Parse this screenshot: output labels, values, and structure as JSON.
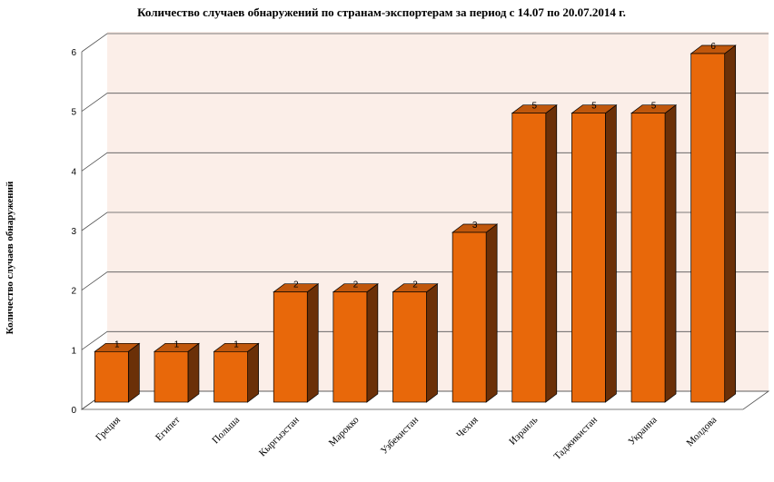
{
  "chart_data": {
    "type": "bar",
    "title": "Количество случаев обнаружений по странам-экспортерам за период с 14.07 по 20.07.2014 г.",
    "xlabel": "",
    "ylabel": "Количество случаев обнаружений",
    "categories": [
      "Греция",
      "Египет",
      "Польша",
      "Кыргызстан",
      "Марокко",
      "Узбекистан",
      "Чехия",
      "Израиль",
      "Таджикистан",
      "Украина",
      "Молдова"
    ],
    "values": [
      1,
      1,
      1,
      2,
      2,
      2,
      3,
      5,
      5,
      5,
      6
    ],
    "ylim": [
      0,
      6
    ],
    "yticks": [
      "0",
      "1",
      "2",
      "3",
      "4",
      "5",
      "6"
    ],
    "data_labels": [
      "1",
      "1",
      "1",
      "2",
      "2",
      "2",
      "3",
      "5",
      "5",
      "5",
      "6"
    ],
    "grid": true,
    "legend": "none",
    "colors": {
      "bar_front": "#E8680A",
      "bar_side": "#6B3008",
      "bar_top": "#C0570C",
      "wall": "#FBEEE8",
      "grid": "#555555"
    }
  }
}
